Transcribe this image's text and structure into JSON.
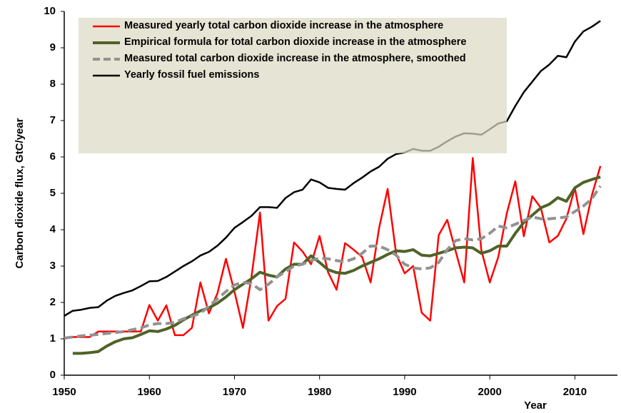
{
  "chart_data": {
    "type": "line",
    "x_label": "Year",
    "y_label": "Carbon dioxide flux, GtC/year",
    "x": [
      1950,
      1951,
      1952,
      1953,
      1954,
      1955,
      1956,
      1957,
      1958,
      1959,
      1960,
      1961,
      1962,
      1963,
      1964,
      1965,
      1966,
      1967,
      1968,
      1969,
      1970,
      1971,
      1972,
      1973,
      1974,
      1975,
      1976,
      1977,
      1978,
      1979,
      1980,
      1981,
      1982,
      1983,
      1984,
      1985,
      1986,
      1987,
      1988,
      1989,
      1990,
      1991,
      1992,
      1993,
      1994,
      1995,
      1996,
      1997,
      1998,
      1999,
      2000,
      2001,
      2002,
      2003,
      2004,
      2005,
      2006,
      2007,
      2008,
      2009,
      2010,
      2011,
      2012,
      2013
    ],
    "series": [
      {
        "name": "Measured yearly total carbon dioxide increase in the atmosphere",
        "color": "#ff0000",
        "width": 2.5,
        "dashed": false,
        "values": [
          1.0,
          1.05,
          1.05,
          1.05,
          1.2,
          1.2,
          1.2,
          1.2,
          1.2,
          1.2,
          1.93,
          1.5,
          1.92,
          1.1,
          1.1,
          1.3,
          2.55,
          1.7,
          2.25,
          3.2,
          2.3,
          1.3,
          2.7,
          4.47,
          1.5,
          1.9,
          2.1,
          3.65,
          3.4,
          3.05,
          3.83,
          2.83,
          2.35,
          3.63,
          3.45,
          3.25,
          2.55,
          4.05,
          5.12,
          3.33,
          2.8,
          3.0,
          1.72,
          1.5,
          3.85,
          4.27,
          3.4,
          2.55,
          5.97,
          3.45,
          2.55,
          3.25,
          4.45,
          5.33,
          3.82,
          4.92,
          4.6,
          3.65,
          3.83,
          4.3,
          5.15,
          3.88,
          4.95,
          5.75
        ]
      },
      {
        "name": "Empirical formula for total  carbon dioxide  increase in the atmosphere",
        "color": "#4f6228",
        "width": 4,
        "dashed": false,
        "values": [
          null,
          0.6,
          0.6,
          0.62,
          0.65,
          0.8,
          0.92,
          1.0,
          1.03,
          1.12,
          1.22,
          1.2,
          1.27,
          1.37,
          1.52,
          1.65,
          1.77,
          1.85,
          1.98,
          2.15,
          2.35,
          2.5,
          2.65,
          2.83,
          2.75,
          2.7,
          2.92,
          3.05,
          3.05,
          3.28,
          3.1,
          2.9,
          2.82,
          2.8,
          2.88,
          3.0,
          3.1,
          3.2,
          3.32,
          3.42,
          3.4,
          3.45,
          3.3,
          3.28,
          3.35,
          3.42,
          3.5,
          3.52,
          3.5,
          3.35,
          3.42,
          3.55,
          3.55,
          3.9,
          4.2,
          4.4,
          4.6,
          4.7,
          4.88,
          4.78,
          5.15,
          5.3,
          5.38,
          5.45
        ]
      },
      {
        "name": "Measured total carbon dioxide increase in the atmosphere, smoothed",
        "color": "#929292",
        "width": 4,
        "dashed": true,
        "values": [
          1.02,
          1.05,
          1.08,
          1.1,
          1.12,
          1.15,
          1.17,
          1.2,
          1.25,
          1.3,
          1.38,
          1.42,
          1.42,
          1.45,
          1.55,
          1.62,
          1.7,
          1.9,
          2.1,
          2.3,
          2.48,
          2.55,
          2.52,
          2.35,
          2.5,
          2.7,
          2.85,
          3.0,
          3.05,
          3.15,
          3.22,
          3.2,
          3.15,
          3.12,
          3.2,
          3.35,
          3.55,
          3.55,
          3.45,
          3.3,
          3.05,
          2.95,
          2.92,
          2.95,
          3.1,
          3.45,
          3.7,
          3.75,
          3.72,
          3.75,
          3.9,
          4.1,
          4.05,
          4.15,
          4.25,
          4.35,
          4.3,
          4.3,
          4.32,
          4.35,
          4.5,
          4.65,
          4.85,
          5.2
        ]
      },
      {
        "name": "Yearly fossil fuel emissions",
        "color": "#000000",
        "width": 2.5,
        "dashed": false,
        "values": [
          1.63,
          1.77,
          1.8,
          1.85,
          1.87,
          2.05,
          2.18,
          2.26,
          2.33,
          2.45,
          2.58,
          2.59,
          2.7,
          2.85,
          3.0,
          3.13,
          3.29,
          3.39,
          3.56,
          3.78,
          4.05,
          4.21,
          4.38,
          4.62,
          4.62,
          4.6,
          4.87,
          5.03,
          5.1,
          5.38,
          5.3,
          5.15,
          5.12,
          5.1,
          5.28,
          5.43,
          5.6,
          5.73,
          5.95,
          6.08,
          6.12,
          6.22,
          6.17,
          6.17,
          6.28,
          6.43,
          6.56,
          6.65,
          6.64,
          6.61,
          6.76,
          6.92,
          6.98,
          7.4,
          7.78,
          8.07,
          8.36,
          8.54,
          8.78,
          8.74,
          9.17,
          9.45,
          9.58,
          9.74
        ]
      }
    ],
    "xlim": [
      1950,
      2015
    ],
    "xticks": [
      1950,
      1960,
      1970,
      1980,
      1990,
      2000,
      2010
    ],
    "ylim": [
      0,
      10
    ],
    "yticks": [
      0,
      1,
      2,
      3,
      4,
      5,
      6,
      7,
      8,
      9,
      10
    ],
    "grid": false,
    "legend": "upper left"
  }
}
